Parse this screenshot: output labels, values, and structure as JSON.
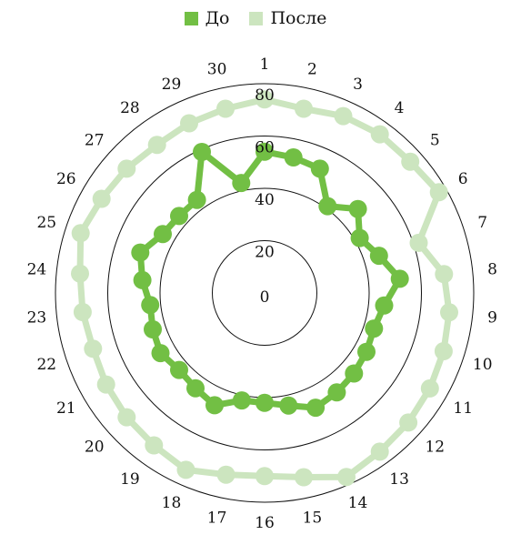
{
  "chart_data": {
    "type": "radar",
    "title": "",
    "legend_position": "top",
    "categories": [
      "1",
      "2",
      "3",
      "4",
      "5",
      "6",
      "7",
      "8",
      "9",
      "10",
      "11",
      "12",
      "13",
      "14",
      "15",
      "16",
      "17",
      "18",
      "19",
      "20",
      "21",
      "22",
      "23",
      "24",
      "25",
      "26",
      "27",
      "28",
      "29",
      "30"
    ],
    "radial_range": [
      0,
      80
    ],
    "ring_ticks": [
      0,
      20,
      40,
      60,
      80
    ],
    "drawn_rings": [
      20,
      40,
      60
    ],
    "series": [
      {
        "name": "До",
        "color": "#72bf44",
        "values": [
          54,
          53,
          52,
          41,
          48,
          42,
          46,
          52,
          46,
          44,
          45,
          46,
          47,
          48,
          44,
          42,
          42,
          47,
          45,
          44,
          46,
          45,
          44,
          47,
          50,
          45,
          44,
          44,
          59,
          43
        ]
      },
      {
        "name": "После",
        "color": "#cce5bf",
        "values": [
          74,
          72,
          74,
          75,
          75,
          77,
          62,
          69,
          71,
          72,
          73,
          74,
          75,
          77,
          72,
          70,
          71,
          74,
          72,
          71,
          70,
          69,
          70,
          71,
          74,
          72,
          71,
          70,
          71,
          72
        ]
      }
    ]
  }
}
